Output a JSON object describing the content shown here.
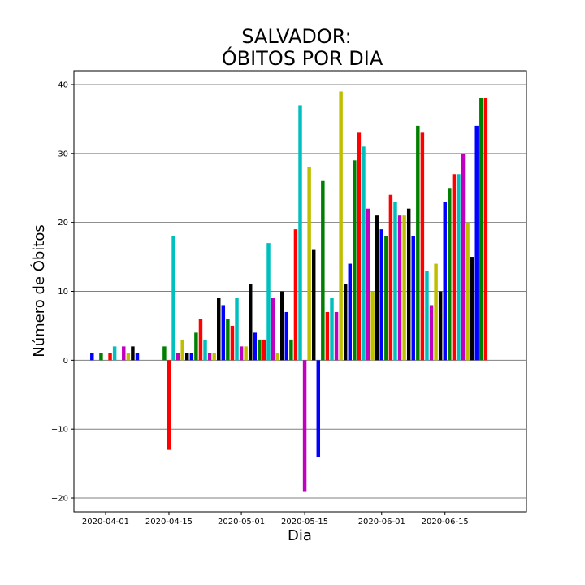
{
  "chart_data": {
    "type": "bar",
    "title_line1": "SALVADOR:",
    "title_line2": "ÓBITOS POR DIA",
    "xlabel": "Dia",
    "ylabel": "Número de Óbitos",
    "ylim": [
      -22,
      42
    ],
    "yticks": [
      {
        "value": 40,
        "label": "40"
      },
      {
        "value": 30,
        "label": "30"
      },
      {
        "value": 20,
        "label": "20"
      },
      {
        "value": 10,
        "label": "10"
      },
      {
        "value": 0,
        "label": "0"
      },
      {
        "value": -10,
        "label": "−10"
      },
      {
        "value": -20,
        "label": "−20"
      }
    ],
    "xticks": [
      {
        "date": "2020-04-01",
        "label": "2020-04-01"
      },
      {
        "date": "2020-04-15",
        "label": "2020-04-15"
      },
      {
        "date": "2020-05-01",
        "label": "2020-05-01"
      },
      {
        "date": "2020-05-15",
        "label": "2020-05-15"
      },
      {
        "date": "2020-06-01",
        "label": "2020-06-01"
      },
      {
        "date": "2020-06-15",
        "label": "2020-06-15"
      }
    ],
    "xlim": [
      "2020-03-25",
      "2020-07-03"
    ],
    "grid": "horizontal",
    "colors": [
      "#0000ff",
      "#008000",
      "#ff0000",
      "#00bfbf",
      "#bf00bf",
      "#bfbf00",
      "#000000"
    ],
    "x": [
      "2020-03-29",
      "2020-03-31",
      "2020-04-02",
      "2020-04-03",
      "2020-04-05",
      "2020-04-06",
      "2020-04-07",
      "2020-04-08",
      "2020-04-14",
      "2020-04-15",
      "2020-04-16",
      "2020-04-17",
      "2020-04-18",
      "2020-04-19",
      "2020-04-20",
      "2020-04-21",
      "2020-04-22",
      "2020-04-23",
      "2020-04-24",
      "2020-04-25",
      "2020-04-26",
      "2020-04-27",
      "2020-04-28",
      "2020-04-29",
      "2020-04-30",
      "2020-05-01",
      "2020-05-02",
      "2020-05-03",
      "2020-05-04",
      "2020-05-05",
      "2020-05-06",
      "2020-05-07",
      "2020-05-08",
      "2020-05-09",
      "2020-05-10",
      "2020-05-11",
      "2020-05-12",
      "2020-05-13",
      "2020-05-14",
      "2020-05-15",
      "2020-05-16",
      "2020-05-17",
      "2020-05-18",
      "2020-05-19",
      "2020-05-20",
      "2020-05-21",
      "2020-05-22",
      "2020-05-23",
      "2020-05-24",
      "2020-05-25",
      "2020-05-26",
      "2020-05-27",
      "2020-05-28",
      "2020-05-29",
      "2020-05-30",
      "2020-05-31",
      "2020-06-01",
      "2020-06-02",
      "2020-06-03",
      "2020-06-04",
      "2020-06-05",
      "2020-06-06",
      "2020-06-07",
      "2020-06-08",
      "2020-06-09",
      "2020-06-10",
      "2020-06-11",
      "2020-06-12",
      "2020-06-13",
      "2020-06-14",
      "2020-06-15",
      "2020-06-16",
      "2020-06-17",
      "2020-06-18",
      "2020-06-19",
      "2020-06-20",
      "2020-06-21",
      "2020-06-22",
      "2020-06-23",
      "2020-06-24",
      "2020-06-25",
      "2020-06-26"
    ],
    "values": [
      1,
      1,
      1,
      2,
      2,
      1,
      2,
      1,
      2,
      -13,
      18,
      1,
      3,
      1,
      1,
      4,
      6,
      3,
      1,
      1,
      9,
      8,
      6,
      5,
      9,
      2,
      2,
      11,
      4,
      3,
      3,
      17,
      9,
      1,
      10,
      7,
      3,
      19,
      37,
      -19,
      28,
      16,
      -14,
      26,
      7,
      9,
      7,
      39,
      11,
      14,
      29,
      33,
      31,
      22,
      10,
      21,
      19,
      18,
      24,
      23,
      21,
      21,
      22,
      18,
      34,
      33,
      13,
      8,
      14,
      10,
      23,
      25,
      27,
      27,
      30,
      20,
      15,
      34,
      38,
      38,
      0,
      0
    ]
  }
}
